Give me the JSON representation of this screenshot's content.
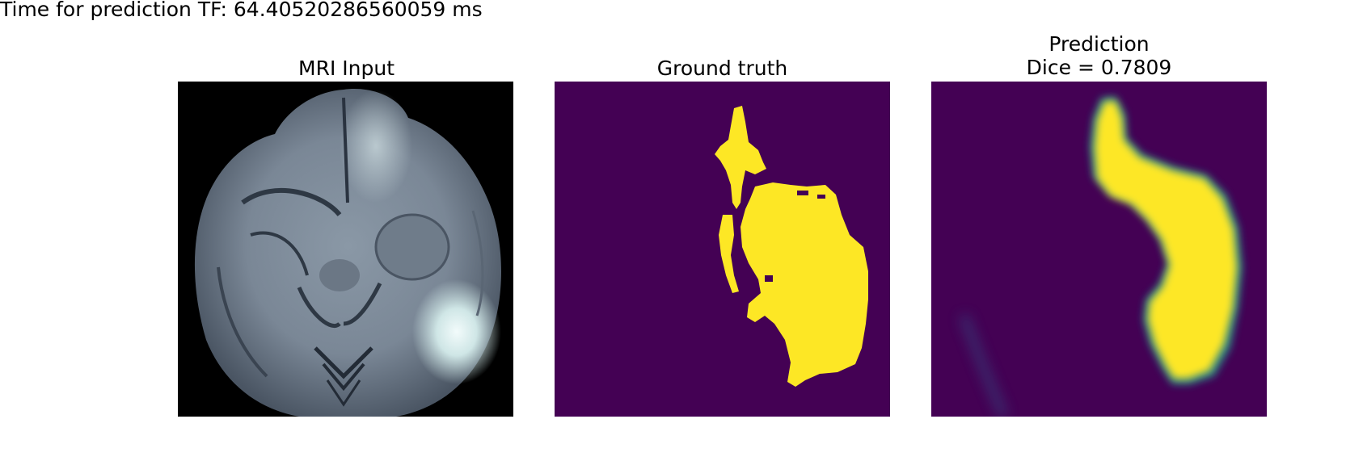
{
  "header": {
    "timing_text": "Time for prediction TF: 64.40520286560059 ms"
  },
  "panels": [
    {
      "title": "MRI Input",
      "image": "axial brain MRI slice, grayscale with bluish tint, bright lesion on right side"
    },
    {
      "title": "Ground truth",
      "image": "binary segmentation mask, yellow tumor region on dark purple background"
    },
    {
      "title_line1": "Prediction",
      "title_line2": "Dice = 0.7809",
      "image": "soft prediction map, yellow tumor region blurred edges on dark purple background"
    }
  ],
  "colors": {
    "mask_background": "#440154",
    "mask_foreground": "#fde725",
    "mri_background": "#000000"
  }
}
